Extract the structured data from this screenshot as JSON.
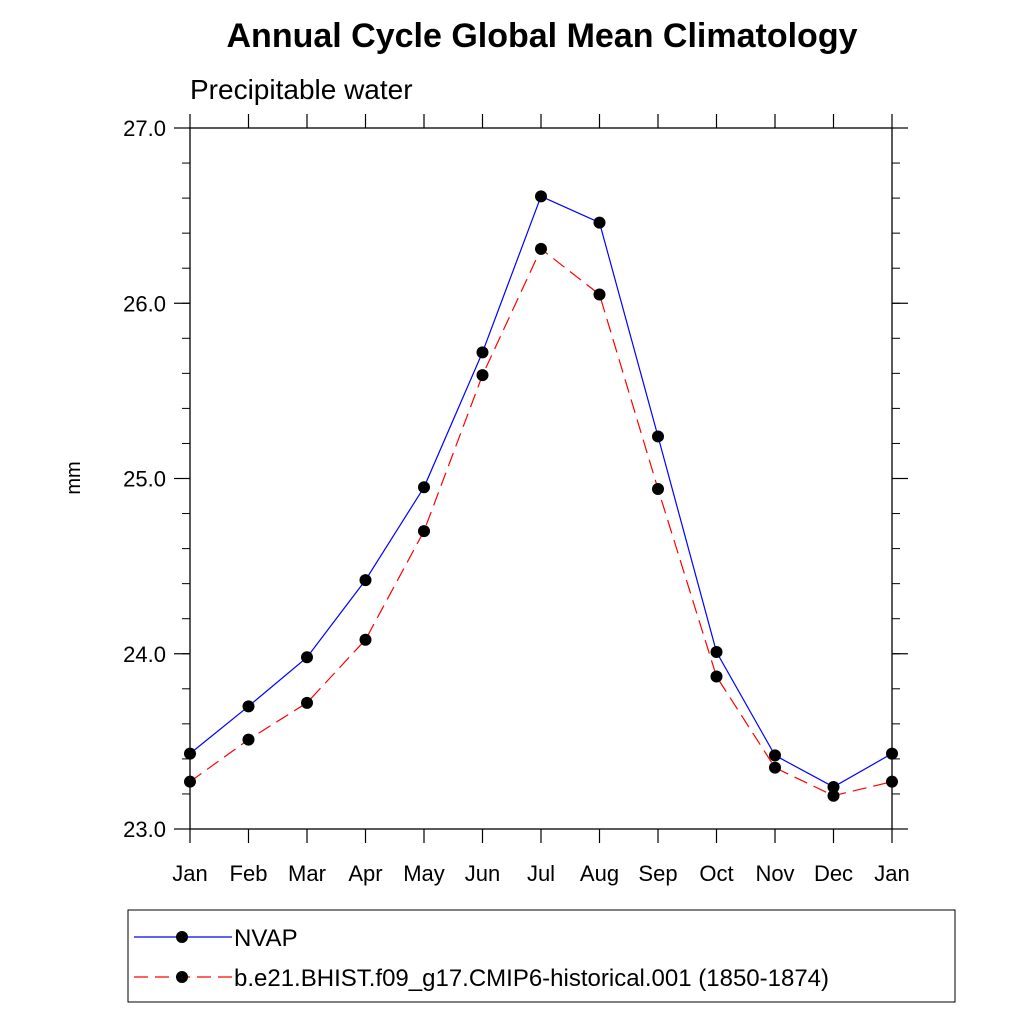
{
  "chart_data": {
    "type": "line",
    "title": "Annual Cycle Global Mean Climatology",
    "subtitle": "Precipitable water",
    "ylabel": "mm",
    "ylim": [
      23.0,
      27.0
    ],
    "y_ticks": [
      "23.0",
      "24.0",
      "25.0",
      "26.0",
      "27.0"
    ],
    "categories": [
      "Jan",
      "Feb",
      "Mar",
      "Apr",
      "May",
      "Jun",
      "Jul",
      "Aug",
      "Sep",
      "Oct",
      "Nov",
      "Dec",
      "Jan"
    ],
    "series": [
      {
        "name": "NVAP",
        "color": "#0000ff",
        "dash": "solid",
        "values": [
          23.43,
          23.7,
          23.98,
          24.42,
          24.95,
          25.72,
          26.61,
          26.46,
          25.24,
          24.01,
          23.42,
          23.24,
          23.43
        ]
      },
      {
        "name": "b.e21.BHIST.f09_g17.CMIP6-historical.001 (1850-1874)",
        "color": "#ff0000",
        "dash": "dashed",
        "values": [
          23.27,
          23.51,
          23.72,
          24.08,
          24.7,
          25.59,
          26.31,
          26.05,
          24.94,
          23.87,
          23.35,
          23.19,
          23.27
        ]
      }
    ],
    "grid": false,
    "legend_position": "bottom"
  }
}
